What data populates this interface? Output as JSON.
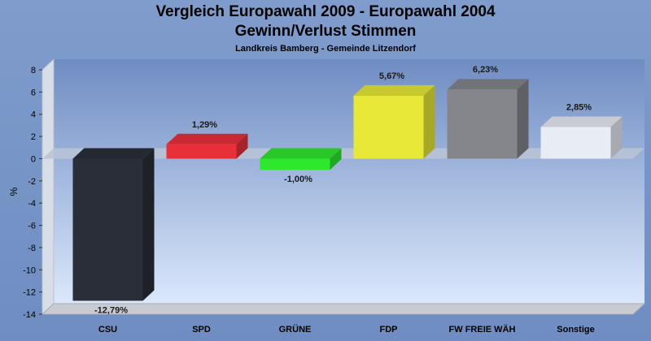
{
  "header": {
    "title": "Vergleich Europawahl 2009 - Europawahl 2004",
    "subtitle": "Gewinn/Verlust Stimmen",
    "region": "Landkreis Bamberg - Gemeinde Litzendorf"
  },
  "chart_data": {
    "type": "bar",
    "categories": [
      "CSU",
      "SPD",
      "GRÜNE",
      "FDP",
      "FW FREIE WÄH",
      "Sonstige"
    ],
    "values": [
      -12.79,
      1.29,
      -1.0,
      5.67,
      6.23,
      2.85
    ],
    "value_labels": [
      "-12,79%",
      "1,29%",
      "-1,00%",
      "5,67%",
      "6,23%",
      "2,85%"
    ],
    "colors": [
      "#2a2e38",
      "#e8303a",
      "#2ee82e",
      "#e8e838",
      "#84868c",
      "#e8ecf4"
    ],
    "ylabel": "%",
    "ylim": [
      -14,
      8
    ],
    "yticks": [
      8,
      6,
      4,
      2,
      0,
      -2,
      -4,
      -6,
      -8,
      -10,
      -12,
      -14
    ],
    "grid": false,
    "style": "3d"
  }
}
